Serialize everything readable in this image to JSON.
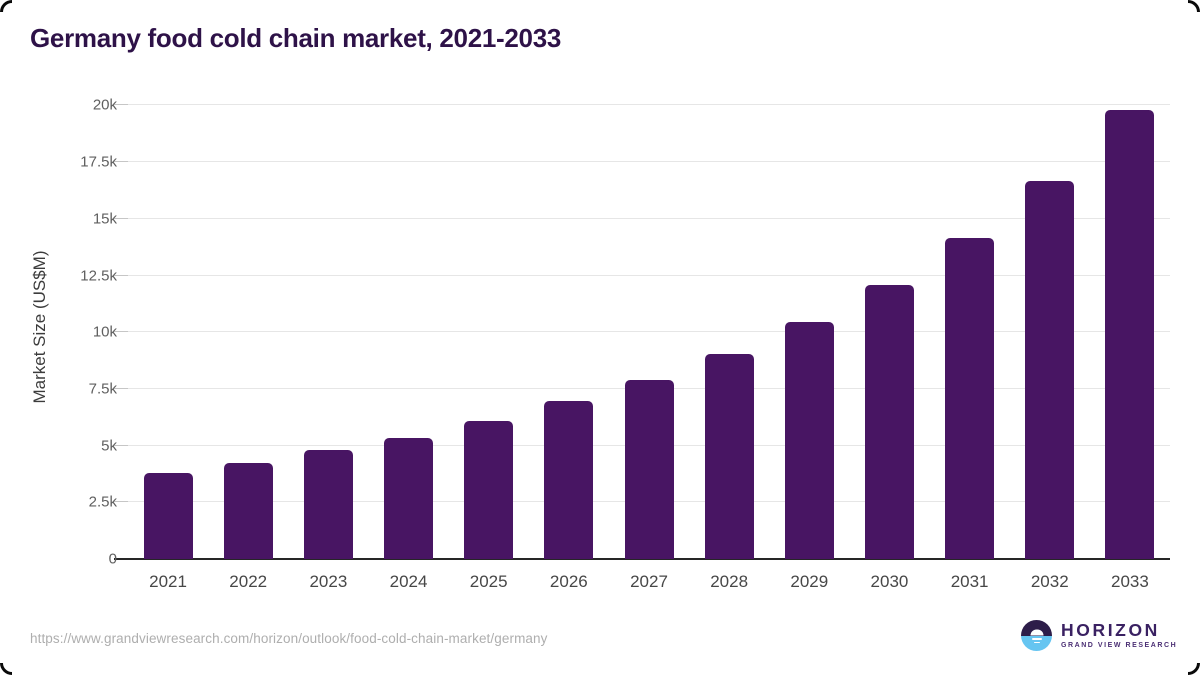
{
  "page": {
    "title": "Germany food cold chain market, 2021-2033",
    "source_url": "https://www.grandviewresearch.com/horizon/outlook/food-cold-chain-market/germany"
  },
  "brand": {
    "name": "HORIZON",
    "tagline": "GRAND VIEW RESEARCH",
    "logo_top_color": "#2d1d49",
    "logo_bottom_color": "#66c5f1",
    "sun_icon": "sun-over-horizon"
  },
  "chart_data": {
    "type": "bar",
    "title": "Germany food cold chain market, 2021-2033",
    "ylabel": "Market Size (US$M)",
    "xlabel": "",
    "categories": [
      "2021",
      "2022",
      "2023",
      "2024",
      "2025",
      "2026",
      "2027",
      "2028",
      "2029",
      "2030",
      "2031",
      "2032",
      "2033"
    ],
    "values": [
      3800,
      4250,
      4800,
      5350,
      6100,
      6950,
      7880,
      9030,
      10450,
      12100,
      14150,
      16650,
      19800
    ],
    "ylim": [
      0,
      20000
    ],
    "ytick_step": 2500,
    "ytick_labels": [
      "0",
      "2.5k",
      "5k",
      "7.5k",
      "10k",
      "12.5k",
      "15k",
      "17.5k",
      "20k"
    ],
    "grid": "horizontal",
    "legend": false,
    "bar_color": "#481563",
    "gridline_color": "#e6e6e6",
    "axis_line_color": "#262626",
    "tick_label_color": "#5f5f5f",
    "title_color": "#2e1248"
  }
}
